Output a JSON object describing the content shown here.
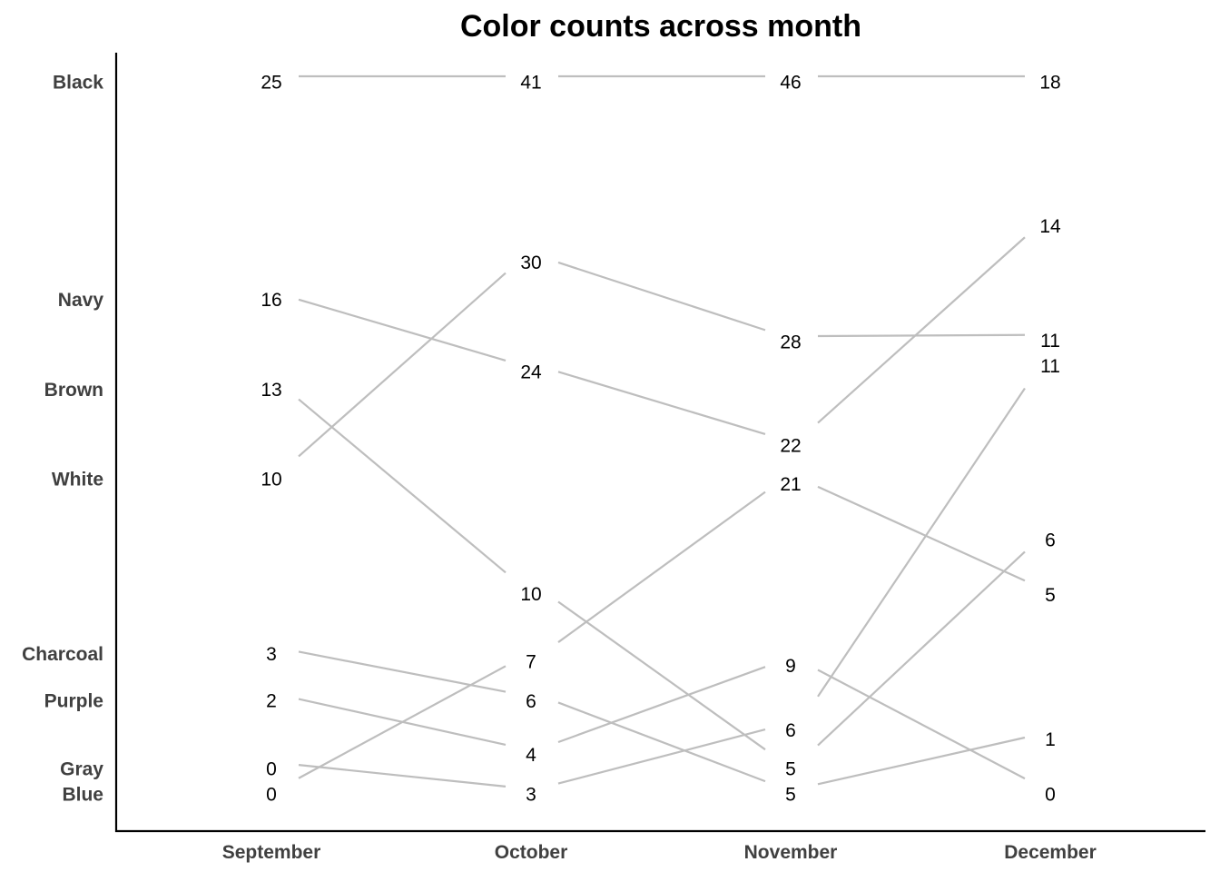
{
  "chart_data": {
    "type": "line",
    "title": "Color counts across month",
    "xlabel": "",
    "ylabel": "",
    "categories": [
      "September",
      "October",
      "November",
      "December"
    ],
    "series": [
      {
        "name": "Black",
        "values": [
          25,
          41,
          46,
          18
        ]
      },
      {
        "name": "Navy",
        "values": [
          16,
          24,
          22,
          14
        ]
      },
      {
        "name": "Brown",
        "values": [
          13,
          10,
          5,
          6
        ]
      },
      {
        "name": "White",
        "values": [
          10,
          30,
          28,
          11
        ]
      },
      {
        "name": "Charcoal",
        "values": [
          3,
          6,
          5,
          1
        ]
      },
      {
        "name": "Purple",
        "values": [
          2,
          4,
          9,
          0
        ]
      },
      {
        "name": "Gray",
        "values": [
          0,
          3,
          6,
          11
        ]
      },
      {
        "name": "Blue",
        "values": [
          0,
          7,
          21,
          5
        ]
      }
    ],
    "grid": false,
    "legend": "none"
  }
}
